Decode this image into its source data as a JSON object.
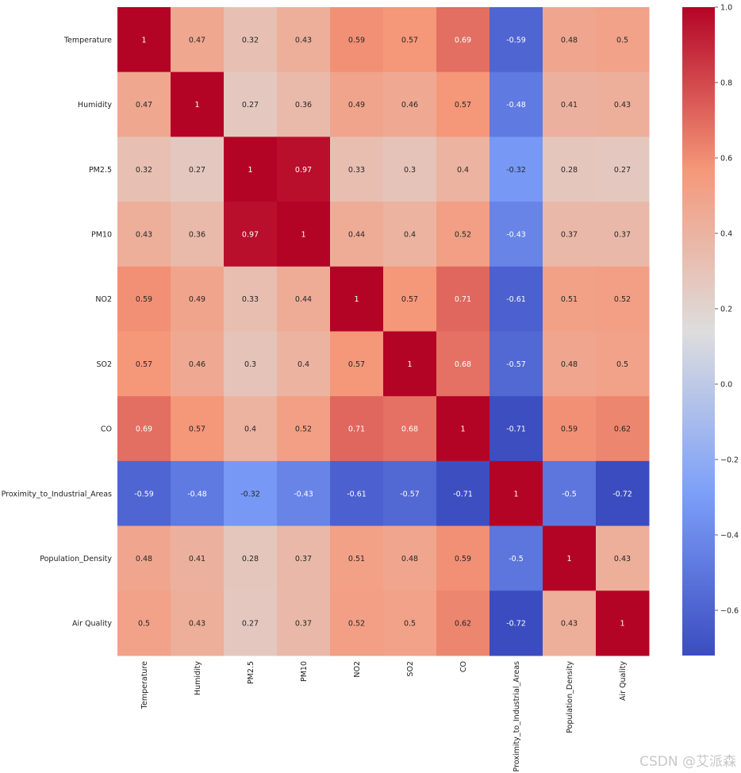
{
  "chart_data": {
    "type": "heatmap",
    "title": "",
    "variables": [
      "Temperature",
      "Humidity",
      "PM2.5",
      "PM10",
      "NO2",
      "SO2",
      "CO",
      "Proximity_to_Industrial_Areas",
      "Population_Density",
      "Air Quality"
    ],
    "matrix": [
      [
        1,
        0.47,
        0.32,
        0.43,
        0.59,
        0.57,
        0.69,
        -0.59,
        0.48,
        0.5
      ],
      [
        0.47,
        1,
        0.27,
        0.36,
        0.49,
        0.46,
        0.57,
        -0.48,
        0.41,
        0.43
      ],
      [
        0.32,
        0.27,
        1,
        0.97,
        0.33,
        0.3,
        0.4,
        -0.32,
        0.28,
        0.27
      ],
      [
        0.43,
        0.36,
        0.97,
        1,
        0.44,
        0.4,
        0.52,
        -0.43,
        0.37,
        0.37
      ],
      [
        0.59,
        0.49,
        0.33,
        0.44,
        1,
        0.57,
        0.71,
        -0.61,
        0.51,
        0.52
      ],
      [
        0.57,
        0.46,
        0.3,
        0.4,
        0.57,
        1,
        0.68,
        -0.57,
        0.48,
        0.5
      ],
      [
        0.69,
        0.57,
        0.4,
        0.52,
        0.71,
        0.68,
        1,
        -0.71,
        0.59,
        0.62
      ],
      [
        -0.59,
        -0.48,
        -0.32,
        -0.43,
        -0.61,
        -0.57,
        -0.71,
        1,
        -0.5,
        -0.72
      ],
      [
        0.48,
        0.41,
        0.28,
        0.37,
        0.51,
        0.48,
        0.59,
        -0.5,
        1,
        0.43
      ],
      [
        0.5,
        0.43,
        0.27,
        0.37,
        0.52,
        0.5,
        0.62,
        -0.72,
        0.43,
        1
      ]
    ],
    "colormap": "coolwarm",
    "vmin": -0.72,
    "vmax": 1,
    "colorbar_ticks": [
      1.0,
      0.8,
      0.6,
      0.4,
      0.2,
      0.0,
      -0.2,
      -0.4,
      -0.6
    ],
    "colorbar_tick_labels": [
      "1.0",
      "0.8",
      "0.6",
      "0.4",
      "0.2",
      "0.0",
      "−0.2",
      "−0.4",
      "−0.6"
    ],
    "annotate": true
  },
  "watermark": "CSDN @艾派森"
}
